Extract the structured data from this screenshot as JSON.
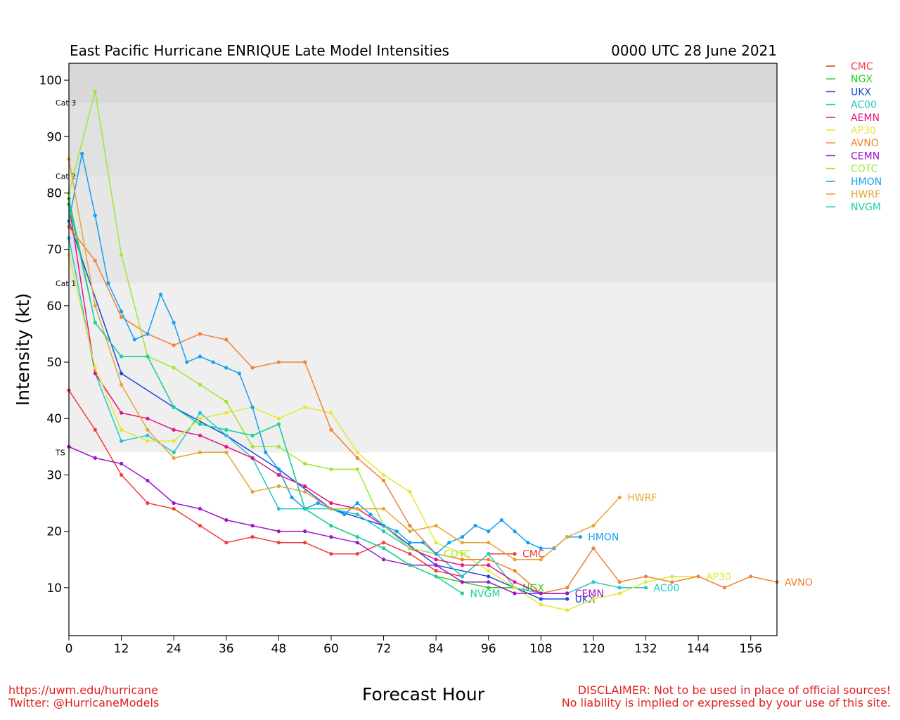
{
  "header": {
    "title": "East Pacific Hurricane ENRIQUE Late Model Intensities",
    "datetime": "0000 UTC 28 June 2021"
  },
  "footer": {
    "url": "https://uwm.edu/hurricane",
    "twitter": "Twitter: @HurricaneModels",
    "disclaimer1": "DISCLAIMER: Not to be used in place of official sources!",
    "disclaimer2": "No liability is implied or expressed by your use of this site."
  },
  "chart_data": {
    "type": "line",
    "title": "East Pacific Hurricane ENRIQUE Late Model Intensities",
    "xlabel": "Forecast Hour",
    "ylabel": "Intensity (kt)",
    "xlim": [
      0,
      162
    ],
    "ylim": [
      1.5,
      103
    ],
    "xticks": [
      0,
      12,
      24,
      36,
      48,
      60,
      72,
      84,
      96,
      108,
      120,
      132,
      144,
      156
    ],
    "yticks": [
      10,
      20,
      30,
      40,
      50,
      60,
      70,
      80,
      90,
      100
    ],
    "grid": false,
    "legend_position": "right, outside plot",
    "category_bands": [
      {
        "label": "TS",
        "from": 34,
        "to": 64,
        "color": "#efefef"
      },
      {
        "label": "Cat 1",
        "from": 64,
        "to": 83,
        "color": "#e6e6e6"
      },
      {
        "label": "Cat 2",
        "from": 83,
        "to": 96,
        "color": "#e0e0e0"
      },
      {
        "label": "Cat 3",
        "from": 96,
        "to": 103,
        "color": "#d8d8d8"
      }
    ],
    "series": [
      {
        "name": "CMC",
        "color": "#f03c3c",
        "end_label": "CMC",
        "x": [
          0,
          6,
          12,
          18,
          24,
          30,
          36,
          42,
          48,
          54,
          60,
          66,
          72,
          78,
          84,
          90,
          96,
          102
        ],
        "y": [
          45,
          38,
          30,
          25,
          24,
          21,
          18,
          19,
          18,
          18,
          16,
          16,
          18,
          16,
          13,
          12,
          16,
          16
        ]
      },
      {
        "name": "NGX",
        "color": "#1ed21e",
        "end_label": "NGX",
        "x": [
          0,
          6,
          12,
          18,
          24,
          30,
          36,
          42,
          48,
          54,
          60,
          66,
          72,
          78,
          84,
          90,
          96,
          102
        ],
        "y": [
          79,
          57,
          51,
          51,
          42,
          39,
          38,
          37,
          39,
          24,
          21,
          19,
          17,
          14,
          12,
          11,
          10,
          10
        ]
      },
      {
        "name": "UKX",
        "color": "#1e46dc",
        "end_label": "UKX",
        "x": [
          0,
          12,
          24,
          36,
          48,
          60,
          72,
          84,
          96,
          108,
          114
        ],
        "y": [
          75,
          48,
          42,
          37,
          31,
          24,
          21,
          14,
          12,
          8,
          8
        ]
      },
      {
        "name": "AC00",
        "color": "#1ec8c8",
        "end_label": "AC00",
        "x": [
          0,
          6,
          12,
          18,
          24,
          30,
          36,
          42,
          48,
          54,
          60,
          66,
          72,
          78,
          84,
          90,
          96,
          102,
          108,
          114,
          120,
          126,
          132
        ],
        "y": [
          72,
          48,
          36,
          37,
          34,
          41,
          37,
          33,
          24,
          24,
          24,
          23,
          20,
          17,
          16,
          12,
          16,
          10,
          9,
          9,
          11,
          10,
          10
        ]
      },
      {
        "name": "AEMN",
        "color": "#e6147f",
        "end_label": "",
        "x": [
          0,
          6,
          12,
          18,
          24,
          30,
          36,
          42,
          48,
          54,
          60,
          66,
          72,
          78,
          84,
          90,
          96,
          102,
          108,
          114
        ],
        "y": [
          78,
          48,
          41,
          40,
          38,
          37,
          35,
          33,
          30,
          28,
          25,
          24,
          21,
          17,
          15,
          14,
          14,
          11,
          9,
          9
        ]
      },
      {
        "name": "AP30",
        "color": "#e6e632",
        "end_label": "AP30",
        "x": [
          0,
          6,
          12,
          18,
          24,
          30,
          36,
          42,
          48,
          54,
          60,
          66,
          72,
          78,
          84,
          90,
          96,
          102,
          108,
          114,
          120,
          126,
          132,
          138,
          144
        ],
        "y": [
          69,
          49,
          38,
          36,
          36,
          40,
          41,
          42,
          40,
          42,
          41,
          34,
          30,
          27,
          18,
          16,
          13,
          10,
          7,
          6,
          8,
          9,
          11,
          12,
          12
        ]
      },
      {
        "name": "AVNO",
        "color": "#f08232",
        "end_label": "AVNO",
        "x": [
          0,
          6,
          12,
          18,
          24,
          30,
          36,
          42,
          48,
          54,
          60,
          66,
          72,
          78,
          84,
          90,
          96,
          102,
          108,
          114,
          120,
          126,
          132,
          138,
          144,
          150,
          156,
          162
        ],
        "y": [
          74,
          68,
          58,
          55,
          53,
          55,
          54,
          49,
          50,
          50,
          38,
          33,
          29,
          21,
          16,
          15,
          15,
          13,
          9,
          10,
          17,
          11,
          12,
          11,
          12,
          10,
          12,
          11
        ]
      },
      {
        "name": "CEMN",
        "color": "#a014c8",
        "end_label": "CEMN",
        "x": [
          0,
          6,
          12,
          18,
          24,
          30,
          36,
          42,
          48,
          54,
          60,
          66,
          72,
          78,
          84,
          90,
          96,
          102,
          108,
          114
        ],
        "y": [
          35,
          33,
          32,
          29,
          25,
          24,
          22,
          21,
          20,
          20,
          19,
          18,
          15,
          14,
          14,
          11,
          11,
          9,
          9,
          9
        ]
      },
      {
        "name": "COTC",
        "color": "#a0e632",
        "end_label": "COTC",
        "x": [
          0,
          6,
          12,
          18,
          24,
          30,
          36,
          42,
          48,
          54,
          60,
          66,
          72,
          78,
          84
        ],
        "y": [
          80,
          98,
          69,
          51,
          49,
          46,
          43,
          35,
          35,
          32,
          31,
          31,
          21,
          17,
          16
        ]
      },
      {
        "name": "HMON",
        "color": "#14a0f0",
        "end_label": "HMON",
        "x": [
          0,
          3,
          6,
          9,
          12,
          15,
          18,
          21,
          24,
          27,
          30,
          33,
          36,
          39,
          42,
          45,
          48,
          51,
          54,
          57,
          60,
          63,
          66,
          69,
          72,
          75,
          78,
          81,
          84,
          87,
          90,
          93,
          96,
          99,
          102,
          105,
          108,
          111,
          114,
          117
        ],
        "y": [
          75,
          87,
          76,
          64,
          59,
          54,
          55,
          62,
          57,
          50,
          51,
          50,
          49,
          48,
          42,
          34,
          31,
          26,
          24,
          25,
          24,
          23,
          25,
          23,
          21,
          20,
          18,
          18,
          16,
          18,
          19,
          21,
          20,
          22,
          20,
          18,
          17,
          17,
          19,
          19
        ]
      },
      {
        "name": "HWRF",
        "color": "#e6a532",
        "end_label": "HWRF",
        "x": [
          0,
          6,
          12,
          18,
          24,
          30,
          36,
          42,
          48,
          54,
          60,
          66,
          72,
          78,
          84,
          90,
          96,
          102,
          108,
          114,
          120,
          126
        ],
        "y": [
          86,
          60,
          46,
          38,
          33,
          34,
          34,
          27,
          28,
          27,
          24,
          24,
          24,
          20,
          21,
          18,
          18,
          15,
          15,
          19,
          21,
          26
        ]
      },
      {
        "name": "NVGM",
        "color": "#1ed2a0",
        "end_label": "NVGM",
        "x": [
          0,
          6,
          12,
          18,
          24,
          30,
          36,
          42,
          48,
          54,
          60,
          66,
          72,
          78,
          84,
          90
        ],
        "y": [
          78,
          57,
          51,
          51,
          42,
          39,
          38,
          37,
          39,
          24,
          21,
          19,
          17,
          14,
          12,
          9
        ]
      }
    ]
  }
}
